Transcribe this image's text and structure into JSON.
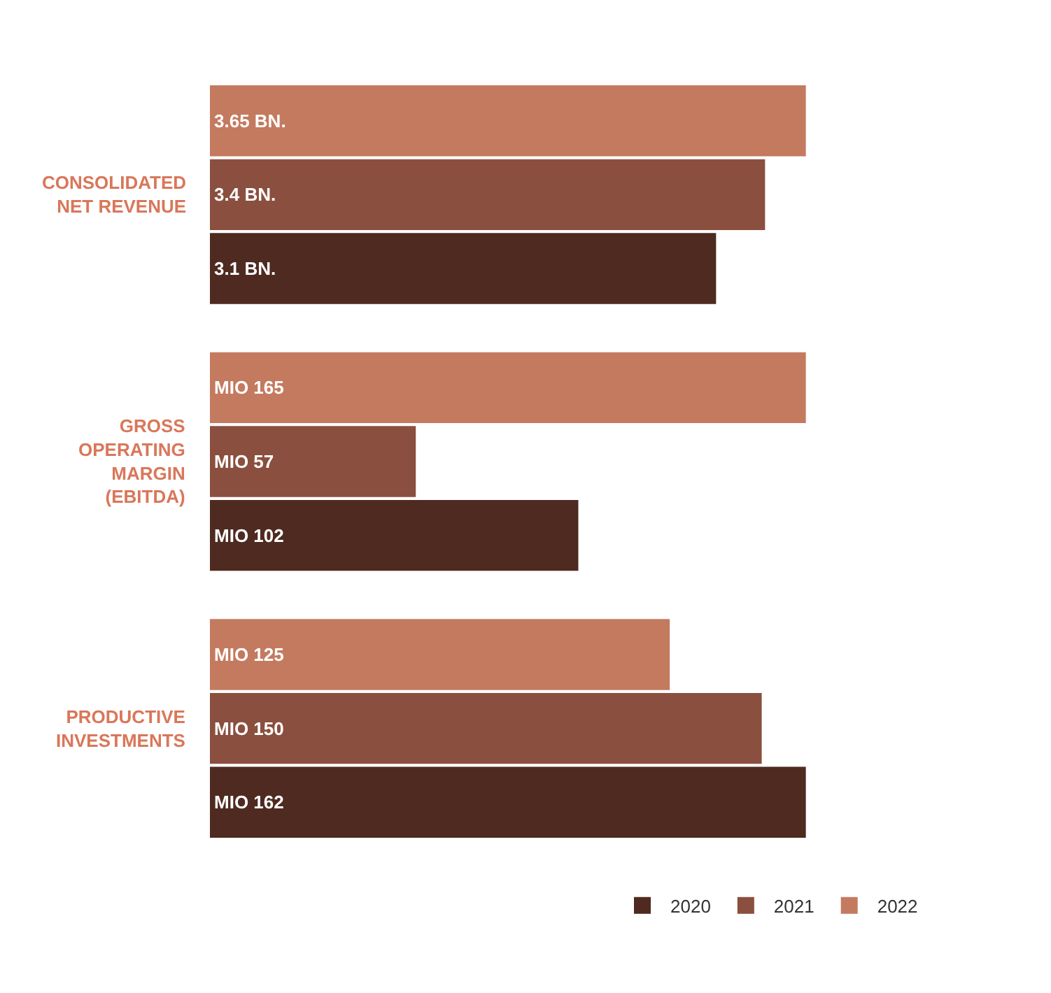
{
  "chart_data": [
    {
      "type": "bar",
      "orientation": "horizontal",
      "stacked": true,
      "ylabel": "CONSOLIDATED NET REVENUE",
      "categories": [
        null,
        null,
        null
      ],
      "series": [
        {
          "color": "#4e2a20",
          "values": [
            null,
            null,
            3.1
          ],
          "value_labels": [
            null,
            null,
            "3.1 BN."
          ]
        },
        {
          "color": "#8a4f3e",
          "values": [
            null,
            3.4,
            null
          ],
          "value_labels": [
            null,
            "3.4 BN.",
            null
          ]
        },
        {
          "color": "#c47a5f",
          "values": [
            3.65,
            null,
            null
          ],
          "value_labels": [
            "3.65 BN.",
            null,
            null
          ]
        }
      ]
    },
    {
      "type": "bar",
      "orientation": "horizontal",
      "stacked": true,
      "ylabel": "GROSS OPERATING MARGIN (EBITDA)",
      "categories": [
        null,
        null,
        null
      ],
      "series": [
        {
          "color": "#4e2a20",
          "values": [
            null,
            null,
            102
          ],
          "value_labels": [
            null,
            null,
            "MIO 102"
          ]
        },
        {
          "color": "#8a4f3e",
          "values": [
            null,
            57,
            null
          ],
          "value_labels": [
            null,
            "MIO 57",
            null
          ]
        },
        {
          "color": "#c47a5f",
          "values": [
            165,
            null,
            null
          ],
          "value_labels": [
            "MIO 165",
            null,
            null
          ]
        }
      ]
    },
    {
      "type": "bar",
      "orientation": "horizontal",
      "stacked": true,
      "ylabel": "PRODUCTIVE INVESTMENTS",
      "categories": [
        null,
        null,
        null
      ],
      "series": [
        {
          "name": "2020",
          "color": "#4e2a20",
          "values": [
            null,
            null,
            162
          ],
          "value_labels": [
            null,
            null,
            "MIO 162"
          ]
        },
        {
          "name": "2021",
          "color": "#8a4f3e",
          "values": [
            null,
            150,
            null
          ],
          "value_labels": [
            null,
            "MIO 150",
            null
          ]
        },
        {
          "name": "2022",
          "color": "#c47a5f",
          "values": [
            125,
            null,
            null
          ],
          "value_labels": [
            "MIO 125",
            null,
            null
          ]
        }
      ],
      "legend": "bottom right"
    }
  ]
}
